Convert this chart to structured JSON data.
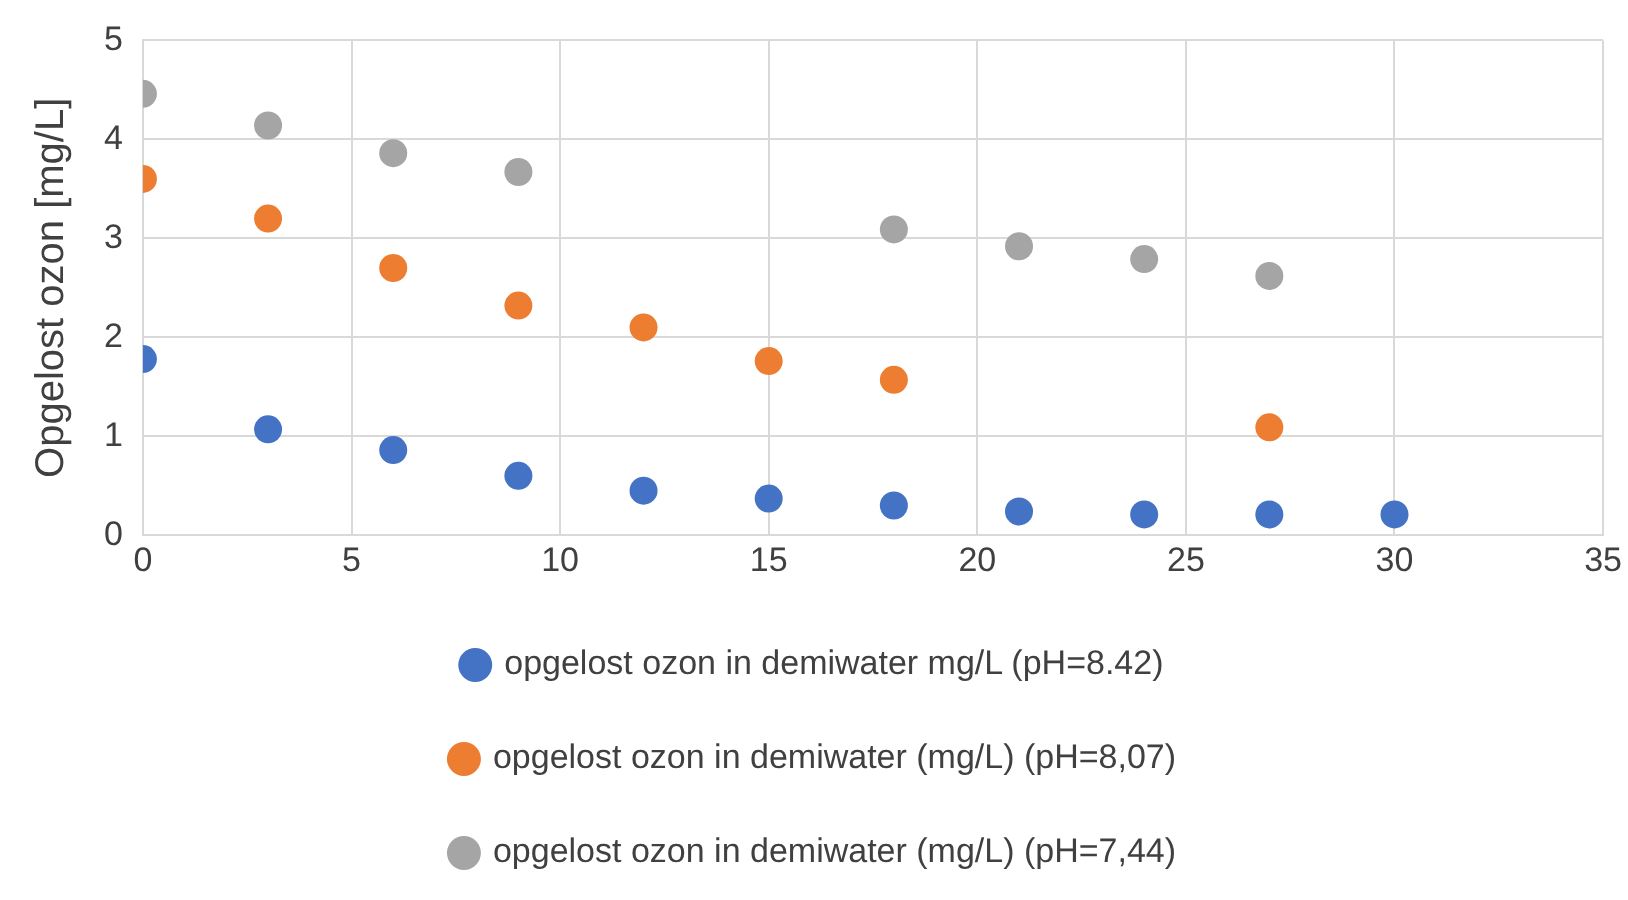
{
  "chart_data": {
    "type": "scatter",
    "ylabel": "Opgelost ozon [mg/L]",
    "xlim": [
      0,
      35
    ],
    "xticks": [
      0,
      5,
      10,
      15,
      20,
      25,
      30,
      35
    ],
    "ylim": [
      0,
      5
    ],
    "yticks": [
      0,
      1,
      2,
      3,
      4,
      5
    ],
    "grid": true,
    "legend": "bottom",
    "marker": "circle",
    "series": [
      {
        "name": "opgelost ozon in demiwater mg/L (pH=8.42)",
        "color": "#4472c4",
        "x": [
          0,
          3,
          6,
          9,
          12,
          15,
          18,
          21,
          24,
          27,
          30
        ],
        "values": [
          1.78,
          1.07,
          0.86,
          0.6,
          0.45,
          0.37,
          0.3,
          0.24,
          0.21,
          0.21,
          0.21
        ]
      },
      {
        "name": "opgelost ozon in demiwater (mg/L) (pH=8,07)",
        "color": "#ed7d31",
        "x": [
          0,
          3,
          6,
          9,
          12,
          15,
          18,
          27
        ],
        "values": [
          3.6,
          3.2,
          2.7,
          2.32,
          2.1,
          1.76,
          1.57,
          1.09
        ]
      },
      {
        "name": "opgelost ozon in demiwater (mg/L) (pH=7,44)",
        "color": "#a5a5a5",
        "x": [
          0,
          3,
          6,
          9,
          18,
          21,
          24,
          27
        ],
        "values": [
          4.46,
          4.14,
          3.86,
          3.67,
          3.09,
          2.92,
          2.79,
          2.62
        ]
      }
    ]
  }
}
